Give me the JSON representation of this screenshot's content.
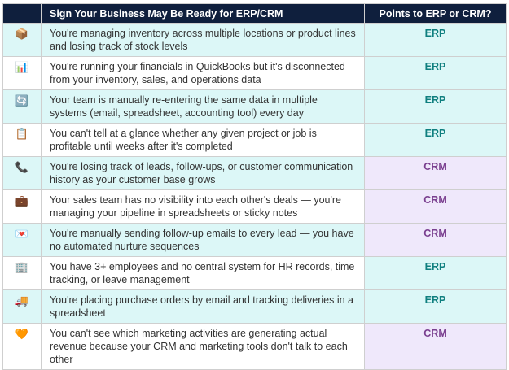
{
  "header": {
    "col_icon": "",
    "col_sign": "Sign Your Business May Be Ready for ERP/CRM",
    "col_points": "Points to ERP or CRM?"
  },
  "colors": {
    "header_bg": "#0f1f3d",
    "erp": "#0f7f7f",
    "crm": "#7a3f8f",
    "erp_bg": "#dcf7f7",
    "crm_bg": "#efe8fb"
  },
  "rows": [
    {
      "icon": "package-icon",
      "glyph": "📦",
      "sign": "You're managing inventory across multiple locations or product lines and losing track of stock levels",
      "points": "ERP"
    },
    {
      "icon": "bar-chart-icon",
      "glyph": "📊",
      "sign": "You're running your financials in QuickBooks but it's disconnected from your inventory, sales, and operations data",
      "points": "ERP"
    },
    {
      "icon": "sync-icon",
      "glyph": "🔄",
      "sign": "Your team is manually re-entering the same data in multiple systems (email, spreadsheet, accounting tool) every day",
      "points": "ERP"
    },
    {
      "icon": "clipboard-icon",
      "glyph": "📋",
      "sign": "You can't tell at a glance whether any given project or job is profitable until weeks after it's completed",
      "points": "ERP"
    },
    {
      "icon": "phone-icon",
      "glyph": "📞",
      "sign": "You're losing track of leads, follow-ups, or customer communication history as your customer base grows",
      "points": "CRM"
    },
    {
      "icon": "briefcase-icon",
      "glyph": "💼",
      "sign": "Your sales team has no visibility into each other's deals — you're managing your pipeline in spreadsheets or sticky notes",
      "points": "CRM"
    },
    {
      "icon": "envelope-icon",
      "glyph": "💌",
      "sign": "You're manually sending follow-up emails to every lead — you have no automated nurture sequences",
      "points": "CRM"
    },
    {
      "icon": "office-building-icon",
      "glyph": "🏢",
      "sign": "You have 3+ employees and no central system for HR records, time tracking, or leave management",
      "points": "ERP"
    },
    {
      "icon": "delivery-truck-icon",
      "glyph": "🚚",
      "sign": "You're placing purchase orders by email and tracking deliveries in a spreadsheet",
      "points": "ERP"
    },
    {
      "icon": "heart-handshake-icon",
      "glyph": "🧡",
      "sign": "You can't see which marketing activities are generating actual revenue because your CRM and marketing tools don't talk to each other",
      "points": "CRM"
    }
  ]
}
